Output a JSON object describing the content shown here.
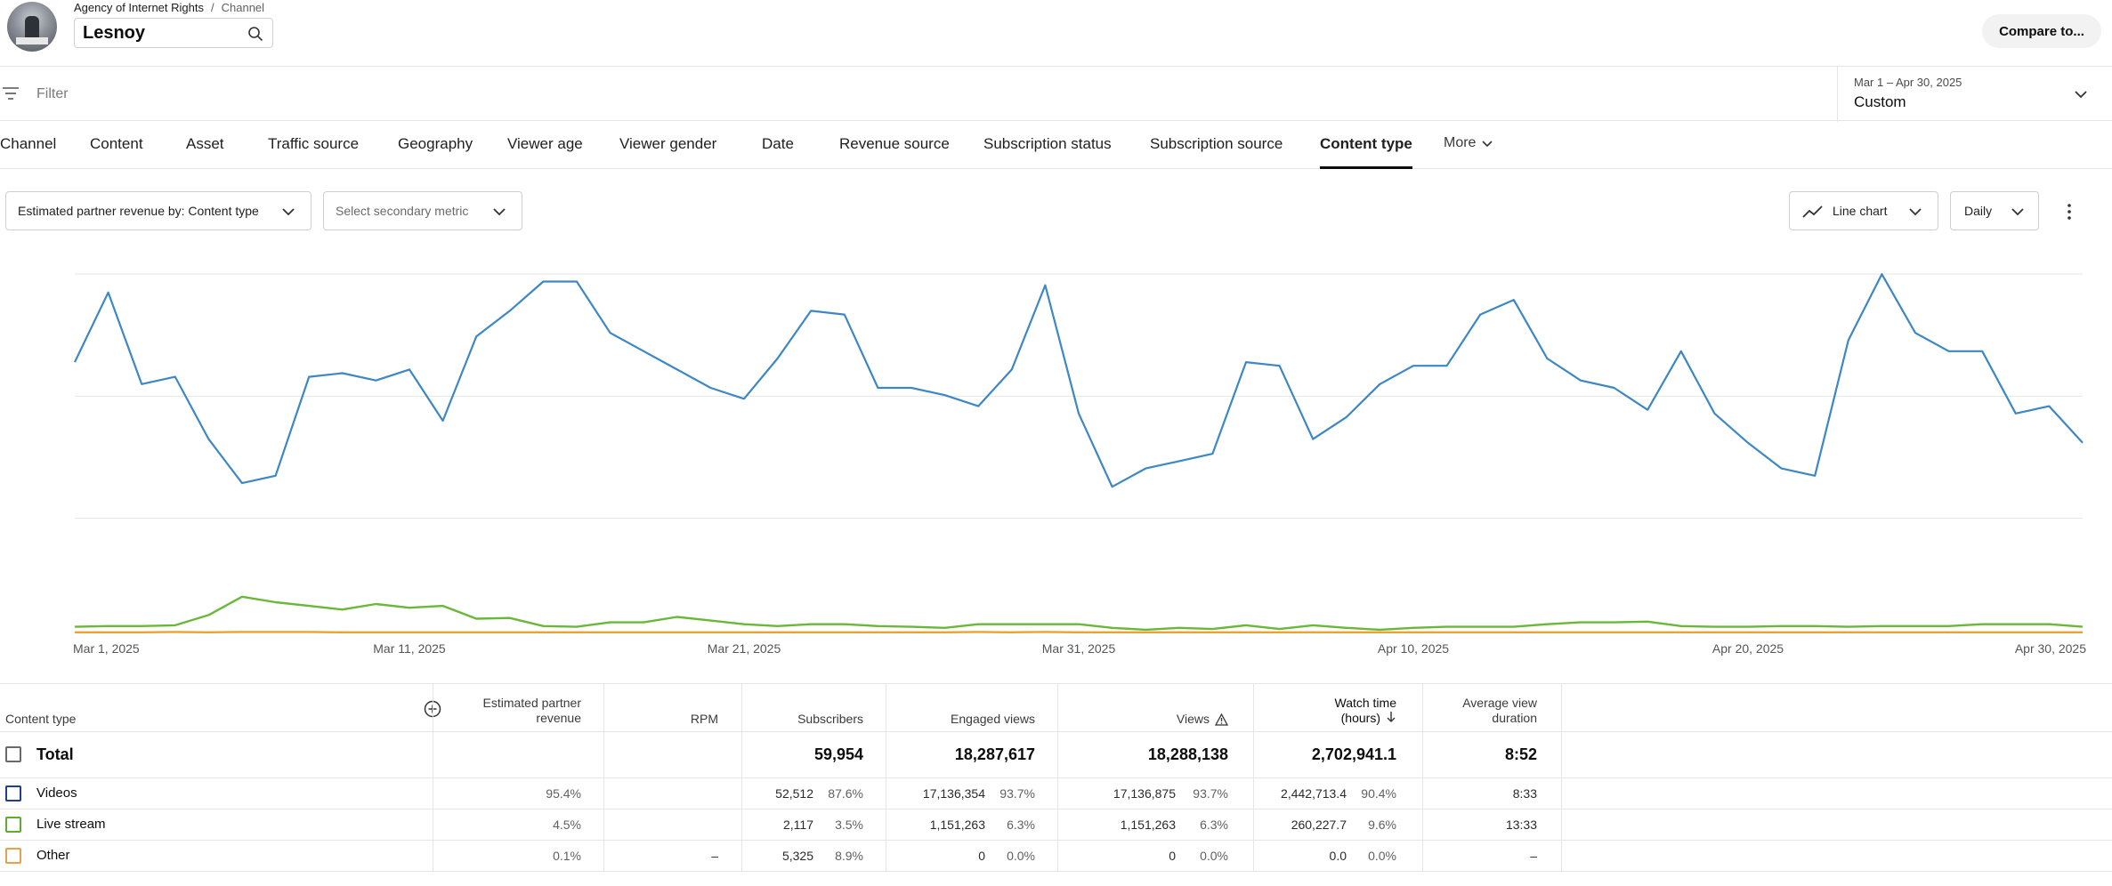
{
  "header": {
    "breadcrumb": {
      "org": "Agency of Internet Rights",
      "separator": "/",
      "current": "Channel"
    },
    "channel_name": "Lesnoy",
    "compare_label": "Compare to..."
  },
  "filter": {
    "placeholder": "Filter"
  },
  "date": {
    "range": "Mar 1 – Apr 30, 2025",
    "preset": "Custom"
  },
  "tabs": [
    {
      "label": "Channel"
    },
    {
      "label": "Content"
    },
    {
      "label": "Asset"
    },
    {
      "label": "Traffic source"
    },
    {
      "label": "Geography"
    },
    {
      "label": "Viewer age"
    },
    {
      "label": "Viewer gender"
    },
    {
      "label": "Date"
    },
    {
      "label": "Revenue source"
    },
    {
      "label": "Subscription status"
    },
    {
      "label": "Subscription source"
    },
    {
      "label": "Content type",
      "active": true
    },
    {
      "label": "More"
    }
  ],
  "controls": {
    "primary_metric": "Estimated partner revenue by: Content type",
    "secondary_metric": "Select secondary metric",
    "chart_type": "Line chart",
    "interval": "Daily"
  },
  "chart_data": {
    "type": "line",
    "x_start": "2025-03-01",
    "x_ticks": [
      "Mar 1, 2025",
      "Mar 11, 2025",
      "Mar 21, 2025",
      "Mar 31, 2025",
      "Apr 10, 2025",
      "Apr 20, 2025",
      "Apr 30, 2025"
    ],
    "y_range": [
      0,
      100
    ],
    "grid": true,
    "legend": "none",
    "series": [
      {
        "color": "#3d87c5",
        "values": [
          74,
          93,
          68,
          70,
          53,
          41,
          43,
          70,
          71,
          69,
          72,
          58,
          81,
          88,
          96,
          96,
          82,
          77,
          72,
          67,
          64,
          75,
          88,
          87,
          67,
          67,
          65,
          62,
          72,
          95,
          60,
          40,
          45,
          47,
          49,
          74,
          73,
          53,
          59,
          68,
          73,
          73,
          87,
          91,
          75,
          69,
          67,
          61,
          77,
          60,
          52,
          45,
          43,
          80,
          98,
          82,
          77,
          77,
          60,
          62,
          52
        ],
        "color_name": "blue"
      },
      {
        "color": "#6ab83a",
        "values": [
          1.8,
          2,
          2,
          2.2,
          5,
          10,
          8.5,
          7.5,
          6.5,
          8,
          7,
          7.5,
          4,
          4.2,
          2,
          1.8,
          3,
          3,
          4.5,
          3.5,
          2.5,
          2,
          2.5,
          2.5,
          2,
          1.8,
          1.5,
          2.5,
          2.5,
          2.5,
          2.5,
          1.5,
          1,
          1.5,
          1.2,
          2.2,
          1.2,
          2.2,
          1.5,
          1,
          1.5,
          1.8,
          1.8,
          1.8,
          2.5,
          3,
          3,
          3.2,
          2,
          1.8,
          1.8,
          2,
          2,
          1.8,
          2,
          2,
          2,
          2.5,
          2.5,
          2.5,
          1.8
        ],
        "color_name": "green"
      },
      {
        "color": "#f0a030",
        "values": [
          0.3,
          0.3,
          0.3,
          0.4,
          0.3,
          0.4,
          0.4,
          0.4,
          0.3,
          0.3,
          0.3,
          0.3,
          0.3,
          0.3,
          0.3,
          0.3,
          0.3,
          0.3,
          0.3,
          0.3,
          0.3,
          0.3,
          0.3,
          0.3,
          0.3,
          0.3,
          0.3,
          0.4,
          0.3,
          0.4,
          0.3,
          0.3,
          0.3,
          0.3,
          0.3,
          0.3,
          0.3,
          0.3,
          0.3,
          0.3,
          0.3,
          0.3,
          0.3,
          0.3,
          0.3,
          0.3,
          0.3,
          0.3,
          0.3,
          0.3,
          0.3,
          0.3,
          0.3,
          0.3,
          0.3,
          0.3,
          0.3,
          0.3,
          0.3,
          0.3,
          0.3
        ],
        "color_name": "orange"
      }
    ]
  },
  "table": {
    "headers": {
      "content_type": "Content type",
      "revenue": [
        "Estimated partner",
        "revenue"
      ],
      "rpm": "RPM",
      "subscribers": "Subscribers",
      "engaged_views": "Engaged views",
      "views": "Views",
      "watch_time": [
        "Watch time",
        "(hours)"
      ],
      "avg_view_duration": [
        "Average view",
        "duration"
      ]
    },
    "total": {
      "label": "Total",
      "subscribers": "59,954",
      "engaged_views": "18,287,617",
      "views": "18,288,138",
      "watch_time": "2,702,941.1",
      "avg": "8:52"
    },
    "rows": [
      {
        "label": "Videos",
        "color": "#1f3f8f",
        "rev_pct": "95.4%",
        "rpm": "",
        "subs": "52,512",
        "subs_pct": "87.6%",
        "eng": "17,136,354",
        "eng_pct": "93.7%",
        "views": "17,136,875",
        "views_pct": "93.7%",
        "wt": "2,442,713.4",
        "wt_pct": "90.4%",
        "avg": "8:33"
      },
      {
        "label": "Live stream",
        "color": "#5aae32",
        "rev_pct": "4.5%",
        "rpm": "",
        "subs": "2,117",
        "subs_pct": "3.5%",
        "eng": "1,151,263",
        "eng_pct": "6.3%",
        "views": "1,151,263",
        "views_pct": "6.3%",
        "wt": "260,227.7",
        "wt_pct": "9.6%",
        "avg": "13:33"
      },
      {
        "label": "Other",
        "color": "#e8a050",
        "rev_pct": "0.1%",
        "rpm": "–",
        "subs": "5,325",
        "subs_pct": "8.9%",
        "eng": "0",
        "eng_pct": "0.0%",
        "views": "0",
        "views_pct": "0.0%",
        "wt": "0.0",
        "wt_pct": "0.0%",
        "avg": "–"
      }
    ]
  }
}
